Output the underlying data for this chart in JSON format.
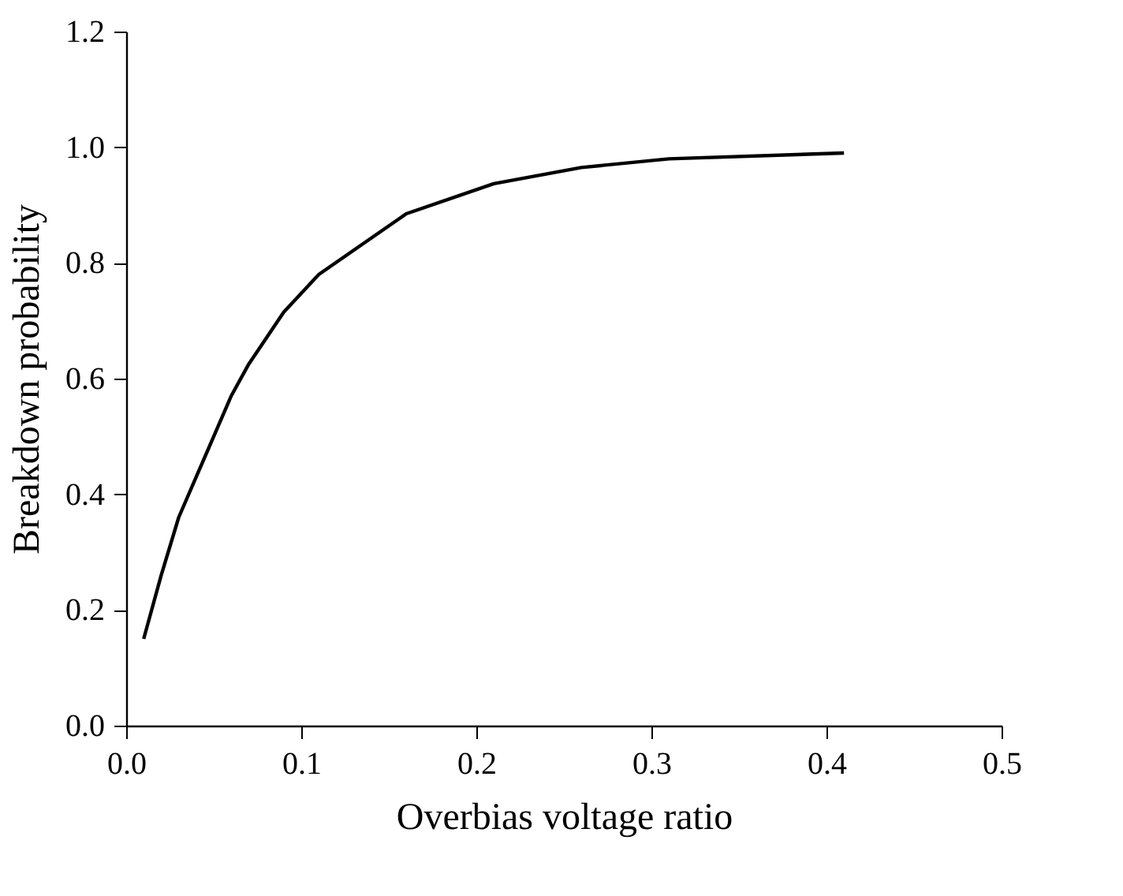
{
  "chart_data": {
    "type": "line",
    "xlabel": "Overbias voltage ratio",
    "ylabel": "Breakdown probability",
    "x": [
      0.01,
      0.02,
      0.03,
      0.04,
      0.05,
      0.06,
      0.07,
      0.09,
      0.11,
      0.16,
      0.21,
      0.26,
      0.31,
      0.41
    ],
    "series": [
      {
        "color": "#000000",
        "values": [
          0.15,
          0.26,
          0.36,
          0.43,
          0.5,
          0.57,
          0.625,
          0.715,
          0.78,
          0.885,
          0.937,
          0.965,
          0.98,
          0.99
        ]
      }
    ],
    "xlim": [
      0,
      0.5
    ],
    "xticks": [
      {
        "value": 0,
        "label": "0.0"
      },
      0.1,
      0.2,
      0.3,
      0.4,
      0.5
    ],
    "ylim": [
      0,
      1.2
    ],
    "yticks": [
      {
        "value": 0,
        "label": "0.0"
      },
      0.2,
      0.4,
      0.6,
      0.8,
      {
        "value": 1,
        "label": "1.0"
      },
      1.2
    ],
    "grid": false,
    "marker": "none",
    "line_style": "solid"
  }
}
